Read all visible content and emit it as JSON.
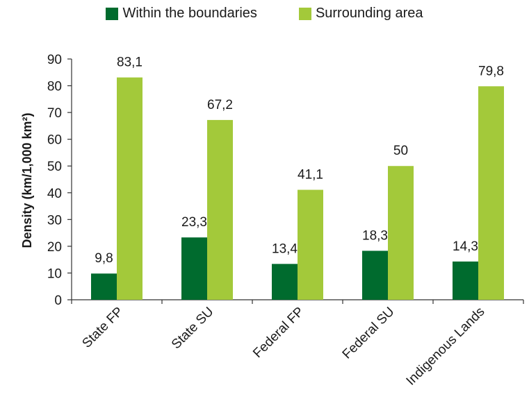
{
  "chart_data": {
    "type": "bar",
    "title": "",
    "xlabel": "",
    "ylabel": "Density (km/1,000 km²)",
    "ylim": [
      0,
      90
    ],
    "yticks": [
      0,
      10,
      20,
      30,
      40,
      50,
      60,
      70,
      80,
      90
    ],
    "categories": [
      "State FP",
      "State SU",
      "Federal FP",
      "Federal SU",
      "Indigenous Lands"
    ],
    "series": [
      {
        "name": "Within the boundaries",
        "color": "#006b2e",
        "values": [
          9.8,
          23.3,
          13.4,
          18.3,
          14.3
        ],
        "labels": [
          "9,8",
          "23,3",
          "13,4",
          "18,3",
          "14,3"
        ]
      },
      {
        "name": "Surrounding area",
        "color": "#a3c93a",
        "values": [
          83.1,
          67.2,
          41.1,
          50,
          79.8
        ],
        "labels": [
          "83,1",
          "67,2",
          "41,1",
          "50",
          "79,8"
        ]
      }
    ],
    "legend_position": "top-center",
    "grid": false
  }
}
